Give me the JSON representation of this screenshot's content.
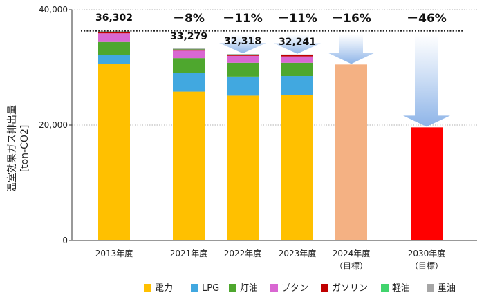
{
  "chart_data": {
    "type": "bar",
    "stacked": true,
    "ylabel_lines": [
      "温室効果ガス排出量",
      "[ton-CO2]"
    ],
    "ylim": [
      0,
      40000
    ],
    "yticks": [
      0,
      20000,
      40000
    ],
    "ytick_labels": [
      "0",
      "20,000",
      "40,000"
    ],
    "grid": "dotted horizontal at 20,000",
    "baseline_value": 36302,
    "categories": [
      {
        "label": "2013年度",
        "sub": ""
      },
      {
        "label": "2021年度",
        "sub": ""
      },
      {
        "label": "2022年度",
        "sub": ""
      },
      {
        "label": "2023年度",
        "sub": ""
      },
      {
        "label": "2024年度",
        "sub": "（目標）"
      },
      {
        "label": "2030年度",
        "sub": "（目標）"
      }
    ],
    "series": [
      {
        "name": "電力",
        "color": "#FFC000",
        "values": [
          30600,
          25800,
          25100,
          25200,
          null,
          null
        ]
      },
      {
        "name": "LPG",
        "color": "#41A8E0",
        "values": [
          1600,
          3200,
          3300,
          3300,
          null,
          null
        ]
      },
      {
        "name": "灯油",
        "color": "#4EA72E",
        "values": [
          2200,
          2600,
          2400,
          2300,
          null,
          null
        ]
      },
      {
        "name": "ブタン",
        "color": "#D967D2",
        "values": [
          1500,
          1300,
          1200,
          1100,
          null,
          null
        ]
      },
      {
        "name": "ガソリン",
        "color": "#C00000",
        "values": [
          200,
          200,
          200,
          200,
          null,
          null
        ]
      },
      {
        "name": "軽油",
        "color": "#41D46D",
        "values": [
          100,
          100,
          50,
          80,
          null,
          null
        ]
      },
      {
        "name": "重油",
        "color": "#A6A6A6",
        "values": [
          102,
          79,
          68,
          61,
          null,
          null
        ]
      }
    ],
    "targets": [
      {
        "category_index": 4,
        "value": 30500,
        "color": "#F4B183"
      },
      {
        "category_index": 5,
        "value": 19600,
        "color": "#FF0000"
      }
    ],
    "total_labels": [
      "36,302",
      "33,279",
      "32,318",
      "32,241",
      "",
      ""
    ],
    "reduction_labels": [
      "",
      "－8%",
      "－11%",
      "－11%",
      "－16%",
      "－46%"
    ],
    "legend_position": "bottom-right"
  }
}
